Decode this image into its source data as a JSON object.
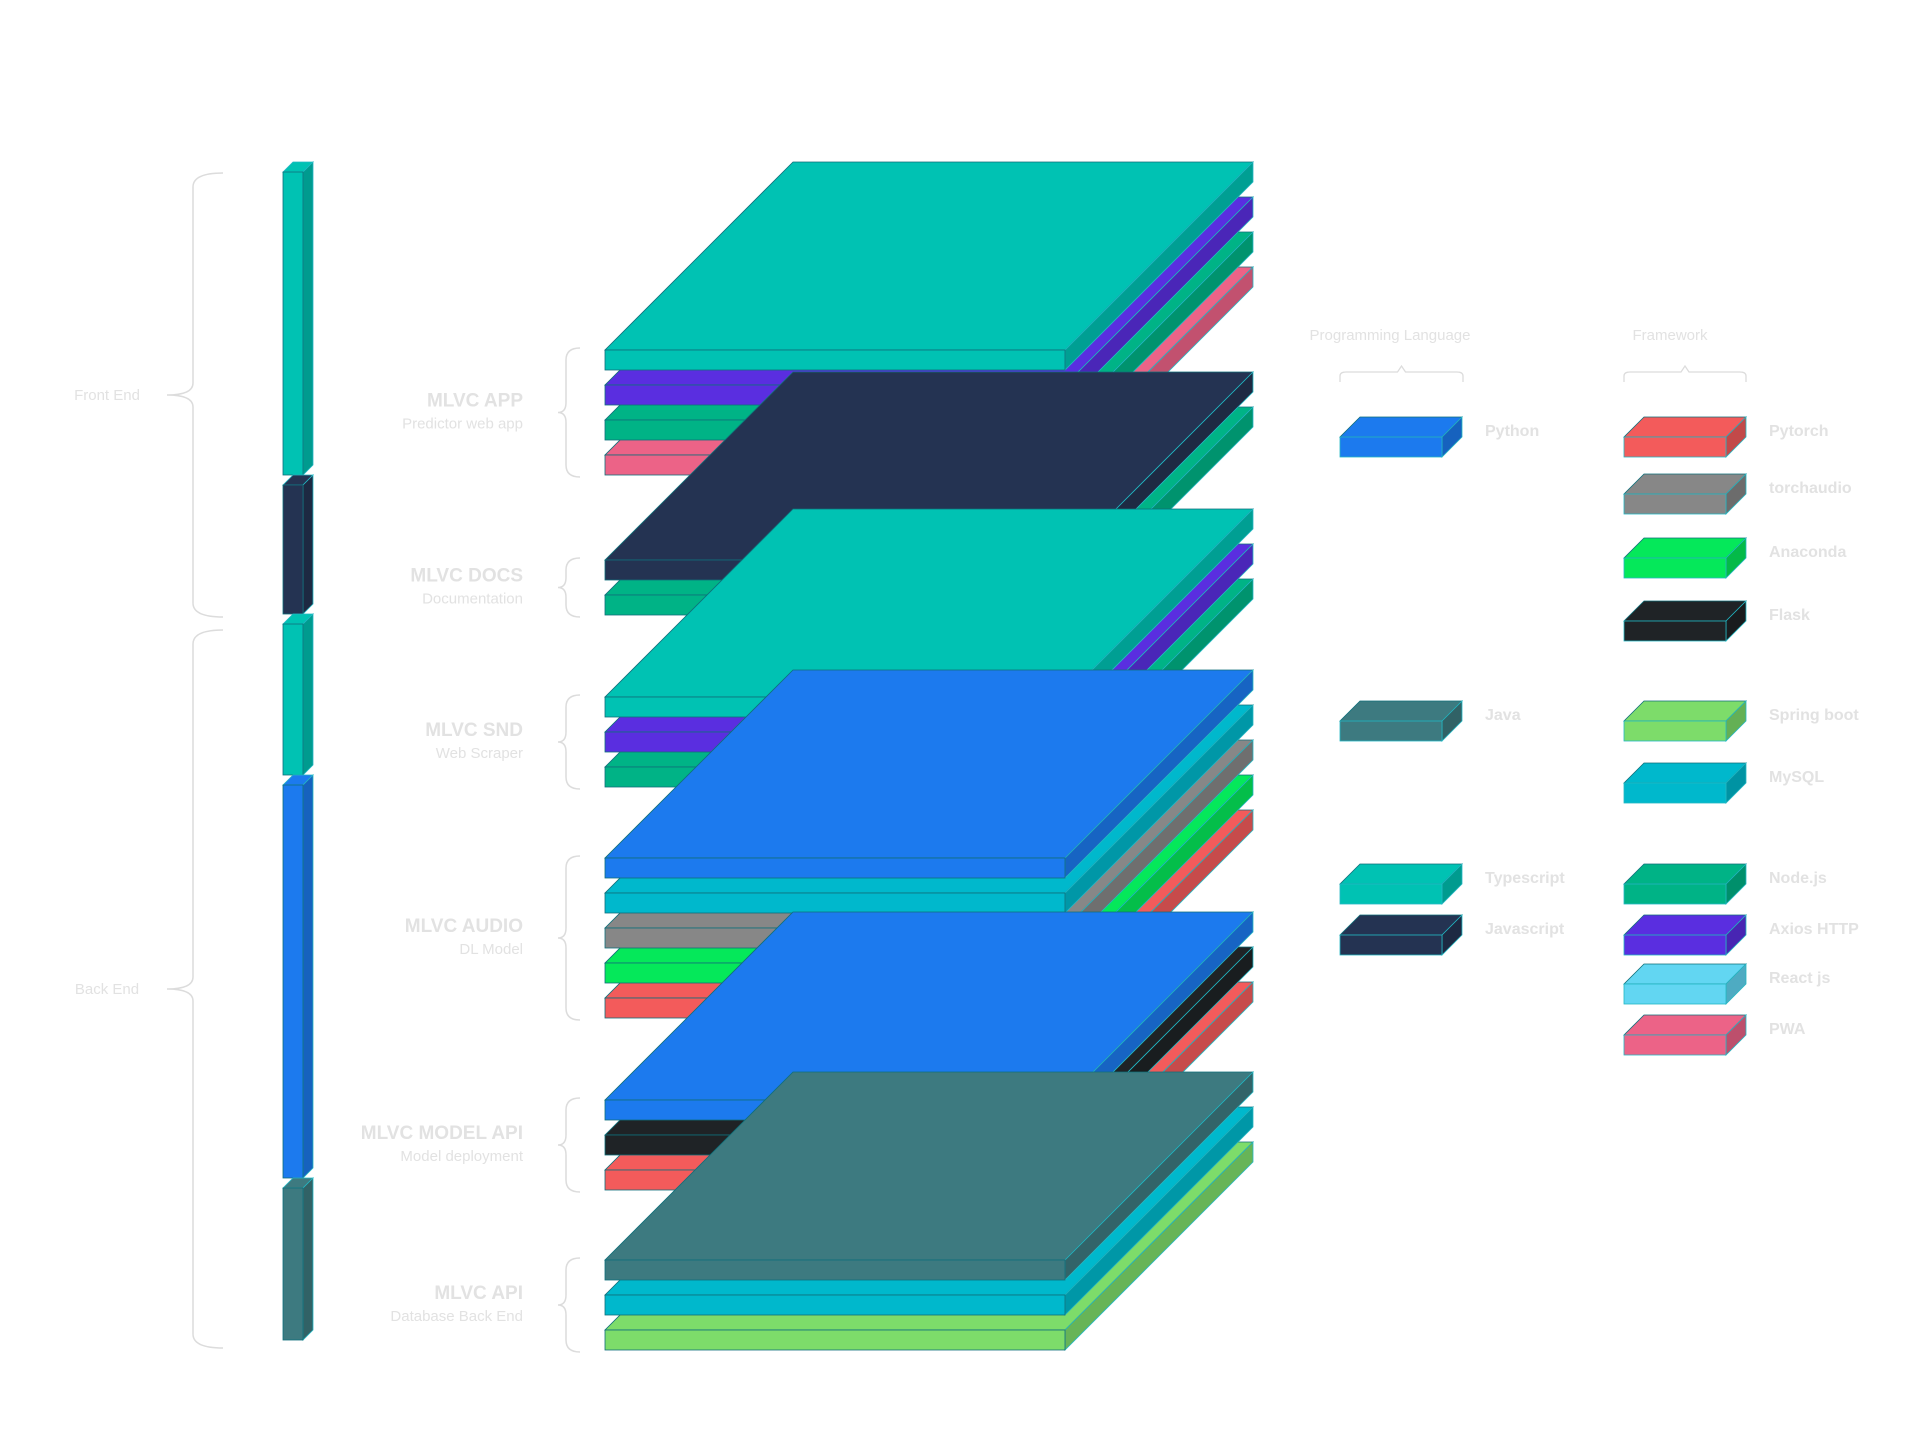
{
  "colors": {
    "teal": "#00c2b3",
    "purple": "#5a2ee0",
    "green": "#00b386",
    "pink": "#ec6387",
    "navy": "#243352",
    "blue": "#1c7aee",
    "cyan": "#00b8cc",
    "gray": "#878787",
    "lime": "#05e85a",
    "red": "#f35b5b",
    "black": "#1f2326",
    "slate": "#3d7a80",
    "lightgreen": "#7ddc6a",
    "sky": "#62d6f2"
  },
  "groups": [
    {
      "label": "Front End"
    },
    {
      "label": "Back End"
    }
  ],
  "sections": [
    {
      "title": "MLVC APP",
      "subtitle": "Predictor web app",
      "layers": [
        "teal",
        "purple",
        "green",
        "pink"
      ]
    },
    {
      "title": "MLVC DOCS",
      "subtitle": "Documentation",
      "layers": [
        "navy",
        "green"
      ]
    },
    {
      "title": "MLVC SND",
      "subtitle": "Web Scraper",
      "layers": [
        "teal",
        "purple",
        "green"
      ]
    },
    {
      "title": "MLVC AUDIO",
      "subtitle": "DL Model",
      "layers": [
        "blue",
        "cyan",
        "gray",
        "lime",
        "red"
      ]
    },
    {
      "title": "MLVC MODEL API",
      "subtitle": "Model deployment",
      "layers": [
        "blue",
        "black",
        "red"
      ]
    },
    {
      "title": "MLVC API",
      "subtitle": "Database Back End",
      "layers": [
        "slate",
        "cyan",
        "lightgreen"
      ]
    }
  ],
  "language_bar": [
    {
      "color": "teal"
    },
    {
      "color": "navy"
    },
    {
      "color": "teal"
    },
    {
      "color": "blue"
    },
    {
      "color": "slate"
    }
  ],
  "legend": {
    "languages_title": "Programming Language",
    "frameworks_title": "Framework",
    "languages": [
      {
        "label": "Python",
        "color": "blue"
      },
      {
        "label": "Java",
        "color": "slate"
      },
      {
        "label": "Typescript",
        "color": "teal"
      },
      {
        "label": "Javascript",
        "color": "navy"
      }
    ],
    "frameworks": [
      {
        "label": "Pytorch",
        "color": "red"
      },
      {
        "label": "torchaudio",
        "color": "gray"
      },
      {
        "label": "Anaconda",
        "color": "lime"
      },
      {
        "label": "Flask",
        "color": "black"
      },
      {
        "label": "Spring boot",
        "color": "lightgreen"
      },
      {
        "label": "MySQL",
        "color": "cyan"
      },
      {
        "label": "Node.js",
        "color": "green"
      },
      {
        "label": "Axios HTTP",
        "color": "purple"
      },
      {
        "label": "React js",
        "color": "sky"
      },
      {
        "label": "PWA",
        "color": "pink"
      }
    ]
  }
}
